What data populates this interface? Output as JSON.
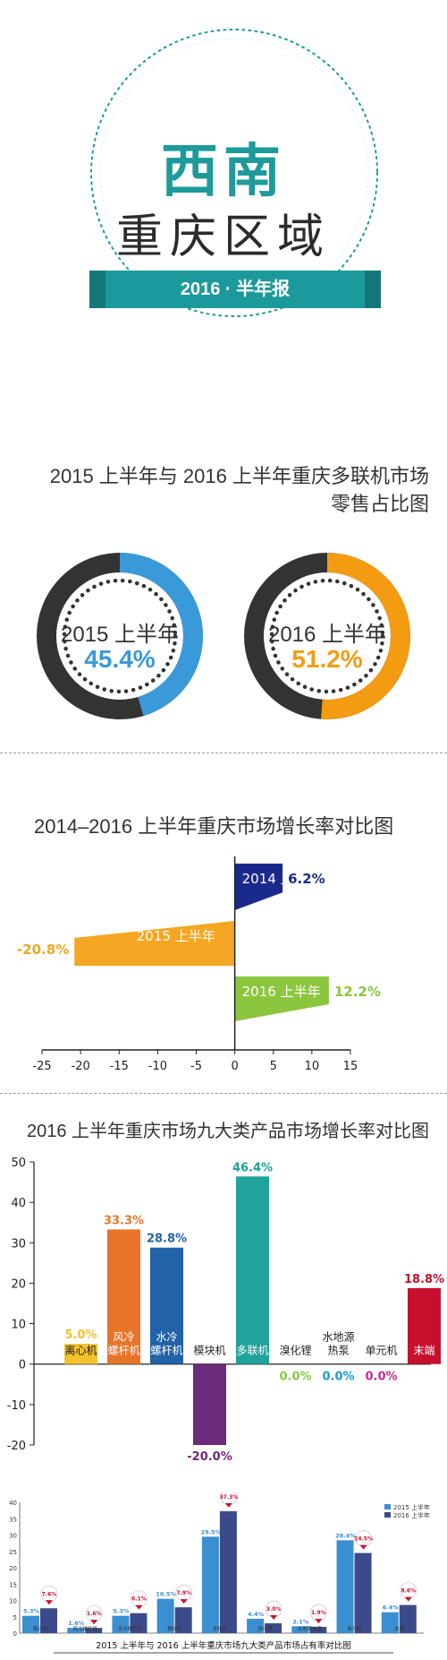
{
  "header": {
    "region": "西南",
    "area": "重庆区域",
    "report": "2016 · 半年报"
  },
  "colors": {
    "teal": "#1c9a9b",
    "blue": "#3a9ad9",
    "orange": "#f39c12",
    "dark": "#333333",
    "navy": "#1a2a8c",
    "green": "#8cc63f"
  },
  "chart_data": [
    {
      "type": "pie",
      "title_line1": "2015 上半年与 2016 上半年重庆多联机市场",
      "title_line2": "零售占比图",
      "rings": [
        {
          "label": "2015 上半年",
          "value": 45.4,
          "value_text": "45.4%",
          "color": "#3a9ad9"
        },
        {
          "label": "2016 上半年",
          "value": 51.2,
          "value_text": "51.2%",
          "color": "#f39c12"
        }
      ]
    },
    {
      "type": "bar",
      "orientation": "horizontal",
      "title": "2014–2016 上半年重庆市场增长率对比图",
      "xlim": [
        -25,
        15
      ],
      "xticks": [
        -25,
        -20,
        -15,
        -10,
        -5,
        0,
        5,
        10,
        15
      ],
      "bars": [
        {
          "label": "2014 上半年",
          "value": 6.2,
          "value_text": "6.2%",
          "color": "#1a2a8c"
        },
        {
          "label": "2015 上半年",
          "value": -20.8,
          "value_text": "-20.8%",
          "color": "#f5a623"
        },
        {
          "label": "2016 上半年",
          "value": 12.2,
          "value_text": "12.2%",
          "color": "#8cc63f"
        }
      ]
    },
    {
      "type": "bar",
      "title": "2016 上半年重庆市场九大类产品市场增长率对比图",
      "ylim": [
        -20,
        50
      ],
      "yticks": [
        50,
        40,
        30,
        20,
        10,
        0,
        -10,
        -20
      ],
      "categories": [
        "离心机",
        "风冷螺杆机",
        "水冷螺杆机",
        "模块机",
        "多联机",
        "溴化锂",
        "水地源热泵",
        "单元机",
        "末端"
      ],
      "label_lines": [
        [
          "离心机"
        ],
        [
          "风冷",
          "螺杆机"
        ],
        [
          "水冷",
          "螺杆机"
        ],
        [
          "模块机"
        ],
        [
          "多联机"
        ],
        [
          "溴化锂"
        ],
        [
          "水地源",
          "热泵"
        ],
        [
          "单元机"
        ],
        [
          "末端"
        ]
      ],
      "values": [
        5.0,
        33.3,
        28.8,
        -20.0,
        46.4,
        0.0,
        0.0,
        0.0,
        18.8
      ],
      "value_texts": [
        "5.0%",
        "33.3%",
        "28.8%",
        "-20.0%",
        "46.4%",
        "0.0%",
        "0.0%",
        "0.0%",
        "18.8%"
      ],
      "colors": [
        "#f2c12e",
        "#e8742a",
        "#2162a8",
        "#6b2a7a",
        "#1fa39b",
        "#8cc63f",
        "#1c9ad6",
        "#c72b8a",
        "#c8102e"
      ]
    },
    {
      "type": "bar",
      "title": "2015 上半年与 2016 上半年重庆市场九大类产品市场占有率对比图",
      "ylim": [
        0,
        40
      ],
      "yticks": [
        40,
        35,
        30,
        25,
        20,
        15,
        10,
        5,
        0
      ],
      "categories": [
        "离心机",
        "风冷螺杆机",
        "水冷螺杆机",
        "模块机",
        "多联机",
        "溴化锂",
        "水地源热泵",
        "单元机",
        "末端"
      ],
      "series": [
        {
          "name": "2015 上半年",
          "values": [
            5.3,
            1.6,
            5.3,
            10.5,
            29.5,
            4.4,
            2.1,
            28.4,
            6.4
          ],
          "value_texts": [
            "5.3%",
            "1.6%",
            "5.3%",
            "10.5%",
            "29.5%",
            "4.4%",
            "2.1%",
            "28.4%",
            "6.4%"
          ],
          "color": "#3a8fd1"
        },
        {
          "name": "2016 上半年",
          "values": [
            7.6,
            1.6,
            6.1,
            7.9,
            37.3,
            3.0,
            1.9,
            24.5,
            8.6
          ],
          "value_texts": [
            "7.6%",
            "1.6%",
            "6.1%",
            "7.9%",
            "37.3%",
            "3.0%",
            "1.9%",
            "24.5%",
            "8.6%"
          ],
          "color": "#3b4a8a"
        }
      ]
    }
  ]
}
